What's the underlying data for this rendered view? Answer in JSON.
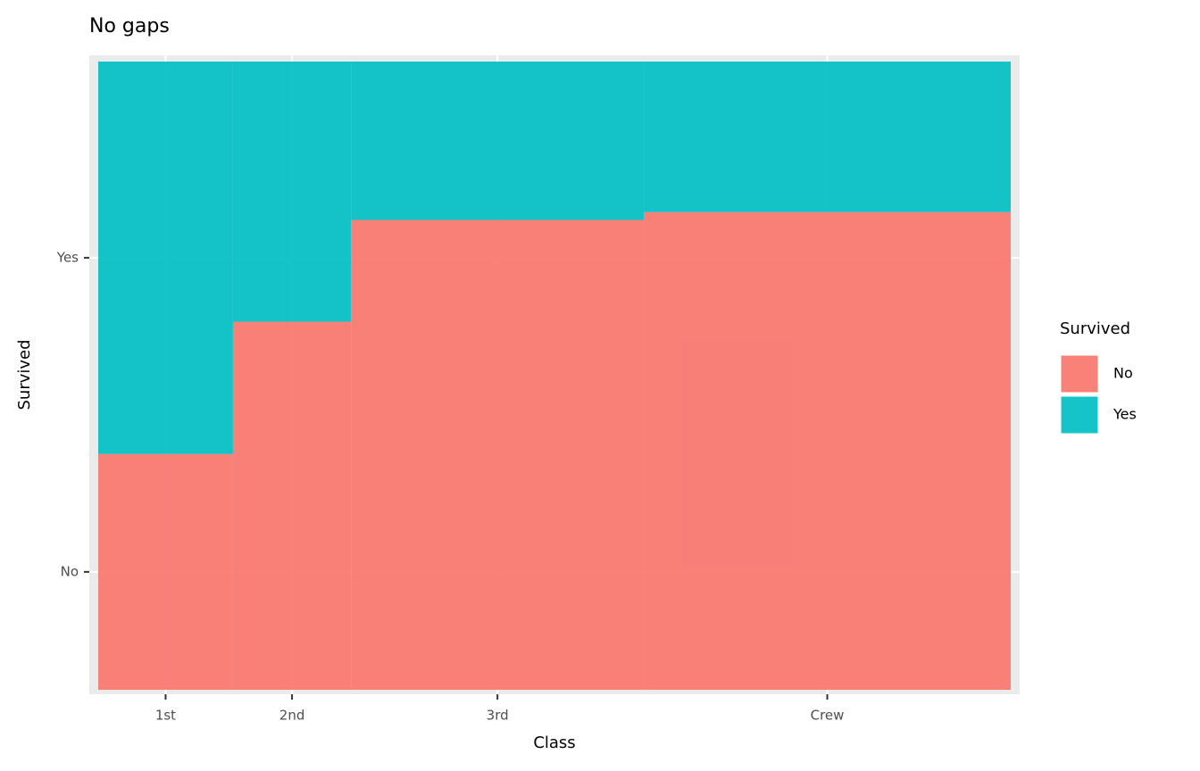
{
  "chart_data": {
    "type": "mosaic",
    "title": "No gaps",
    "x_label": "Class",
    "y_label": "Survived",
    "legend_title": "Survived",
    "categories": [
      "1st",
      "2nd",
      "3rd",
      "Crew"
    ],
    "series": [
      {
        "name": "No",
        "color": "#F8766D",
        "values": [
          122,
          167,
          528,
          673
        ]
      },
      {
        "name": "Yes",
        "color": "#00BFC4",
        "values": [
          203,
          118,
          178,
          212
        ]
      }
    ],
    "legend": "right",
    "grid": true
  }
}
